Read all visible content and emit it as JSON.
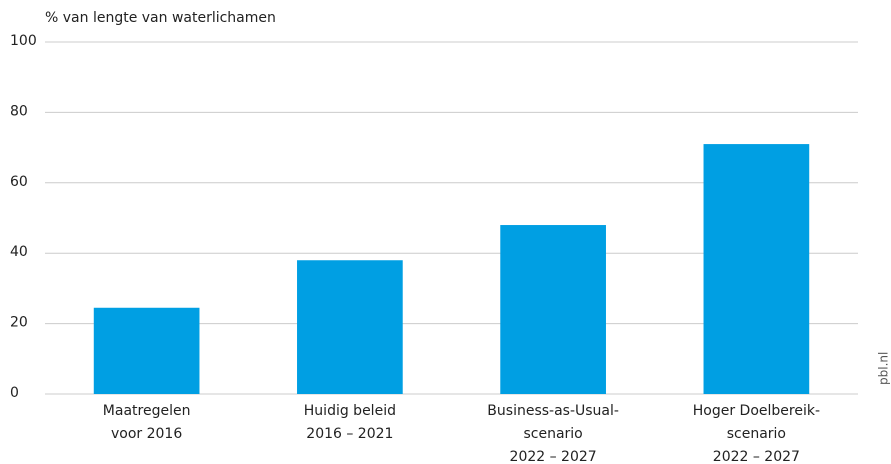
{
  "chart_data": {
    "type": "bar",
    "y_label": "% van lengte van waterlichamen",
    "categories": [
      [
        "Maatregelen",
        "voor 2016"
      ],
      [
        "Huidig beleid",
        "2016 – 2021"
      ],
      [
        "Business-as-Usual-",
        "scenario",
        "2022 – 2027"
      ],
      [
        "Hoger Doelbereik-",
        "scenario",
        "2022 – 2027"
      ]
    ],
    "values": [
      24.5,
      38,
      48,
      71
    ],
    "color": "#009fe3",
    "ylim": [
      0,
      100
    ],
    "yticks": [
      0,
      20,
      40,
      60,
      80,
      100
    ],
    "grid": true,
    "source": "pbl.nl"
  }
}
